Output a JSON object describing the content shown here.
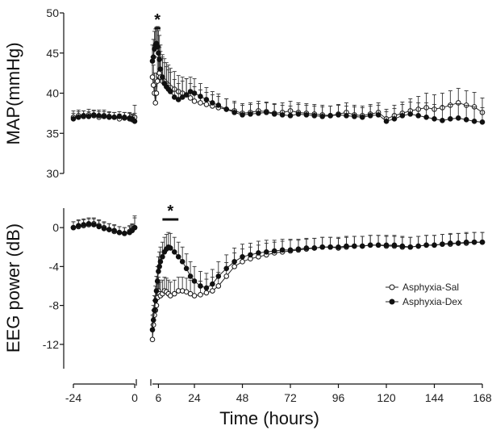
{
  "chart_data": [
    {
      "type": "line",
      "panel": "top",
      "ylabel": "MAP(mmHg)",
      "ylim": [
        30,
        50
      ],
      "yticks": [
        "30",
        "35",
        "40",
        "45",
        "50"
      ],
      "significance": "*",
      "significance_span": [
        4,
        7
      ],
      "series": [
        {
          "name": "Asphyxia-Sal",
          "marker": "open-circle",
          "x": [
            -24,
            -22,
            -20,
            -18,
            -16,
            -14,
            -12,
            -10,
            -8,
            -6,
            -4,
            -2,
            -1,
            0,
            3,
            3.5,
            4,
            4.5,
            5,
            5.5,
            6,
            6.5,
            7,
            8,
            9,
            10,
            11,
            12,
            14,
            16,
            18,
            20,
            22,
            24,
            27,
            30,
            33,
            36,
            40,
            44,
            48,
            52,
            56,
            60,
            64,
            68,
            72,
            76,
            80,
            84,
            88,
            92,
            96,
            100,
            104,
            108,
            112,
            116,
            120,
            124,
            128,
            132,
            136,
            140,
            144,
            148,
            152,
            156,
            160,
            164,
            168
          ],
          "y": [
            37,
            37.2,
            37.1,
            37.3,
            37.2,
            37,
            37.2,
            37.1,
            37,
            36.8,
            36.9,
            36.8,
            36.7,
            37,
            42,
            41,
            40,
            38.8,
            40,
            41.5,
            42.2,
            42.5,
            42,
            41.5,
            41.5,
            41.2,
            41,
            40.7,
            40.5,
            40.2,
            40,
            39.8,
            39.4,
            39,
            38.8,
            38.6,
            38.4,
            38.2,
            38,
            37.8,
            37.5,
            37.6,
            37.8,
            37.7,
            37.5,
            37.6,
            37.8,
            37.6,
            37.5,
            37.4,
            37.3,
            37.2,
            37.4,
            37.6,
            37.3,
            37.2,
            37.4,
            37.6,
            36.8,
            37.2,
            37.5,
            37.8,
            38,
            38.2,
            38,
            38.2,
            38.5,
            38.8,
            38.5,
            38.3,
            37.6
          ],
          "err": [
            0.8,
            0.7,
            0.7,
            0.7,
            0.6,
            0.7,
            0.7,
            0.6,
            0.6,
            0.6,
            0.7,
            0.7,
            0.6,
            1.5,
            2.5,
            2.5,
            2.5,
            2.0,
            2.5,
            3.0,
            3.5,
            3.2,
            3.2,
            3.0,
            2.8,
            2.6,
            2.5,
            2.4,
            2.2,
            2.0,
            2.0,
            2.0,
            1.8,
            1.8,
            1.6,
            1.5,
            1.4,
            1.4,
            1.3,
            1.2,
            1.2,
            1.2,
            1.2,
            1.2,
            1.2,
            1.2,
            1.2,
            1.2,
            1.2,
            1.2,
            1.2,
            1.2,
            1.2,
            1.2,
            1.2,
            1.2,
            1.2,
            1.2,
            1.2,
            1.3,
            1.4,
            1.5,
            1.6,
            1.8,
            1.8,
            1.8,
            1.8,
            1.8,
            1.8,
            1.8,
            1.8
          ]
        },
        {
          "name": "Asphyxia-Dex",
          "marker": "filled-circle",
          "x": [
            -24,
            -22,
            -20,
            -18,
            -16,
            -14,
            -12,
            -10,
            -8,
            -6,
            -4,
            -2,
            -1,
            0,
            3,
            3.5,
            4,
            4.5,
            5,
            5.5,
            6,
            6.5,
            7,
            8,
            9,
            10,
            11,
            12,
            14,
            16,
            18,
            20,
            22,
            24,
            27,
            30,
            33,
            36,
            40,
            44,
            48,
            52,
            56,
            60,
            64,
            68,
            72,
            76,
            80,
            84,
            88,
            92,
            96,
            100,
            104,
            108,
            112,
            116,
            120,
            124,
            128,
            132,
            136,
            140,
            144,
            148,
            152,
            156,
            160,
            164,
            168
          ],
          "y": [
            36.8,
            37,
            37.2,
            37.1,
            37.3,
            37.2,
            37.1,
            37,
            37,
            37.1,
            37,
            36.9,
            36.8,
            36.5,
            44,
            44.5,
            45.5,
            46,
            46.2,
            45.8,
            45,
            44.2,
            43,
            42,
            41.2,
            40.8,
            40.5,
            40.2,
            39.5,
            39.2,
            39.5,
            39.8,
            40.2,
            40,
            39.6,
            39.2,
            38.8,
            38.5,
            38,
            37.6,
            37.3,
            37.4,
            37.5,
            37.6,
            37.4,
            37.3,
            37.2,
            37.4,
            37.3,
            37.2,
            37.1,
            37.2,
            37.3,
            37.2,
            37.1,
            37,
            37.2,
            37.3,
            36.5,
            36.8,
            37.2,
            37.4,
            37.2,
            37,
            36.8,
            36.6,
            36.8,
            36.9,
            36.7,
            36.5,
            36.4
          ],
          "err": [
            0.7,
            0.7,
            0.6,
            0.6,
            0.6,
            0.7,
            0.6,
            0.6,
            0.6,
            0.6,
            0.6,
            0.7,
            0.6,
            1.0,
            2.0,
            2.2,
            2.2,
            2.0,
            2.0,
            2.5,
            2.8,
            3.0,
            3.0,
            2.8,
            2.6,
            2.5,
            2.4,
            2.4,
            2.2,
            2.0,
            2.0,
            2.0,
            1.8,
            1.8,
            1.6,
            1.5,
            1.4,
            1.4,
            1.3,
            1.2,
            1.2,
            1.2,
            1.2,
            1.2,
            1.2,
            1.2,
            1.2,
            1.2,
            1.2,
            1.2,
            1.2,
            1.2,
            1.2,
            1.2,
            1.2,
            1.2,
            1.2,
            1.2,
            1.2,
            1.3,
            1.4,
            1.5,
            1.6,
            1.8,
            1.8,
            1.8,
            1.8,
            1.8,
            1.8,
            1.8,
            1.8
          ]
        }
      ]
    },
    {
      "type": "line",
      "panel": "bottom",
      "ylabel": "EEG power (dB)",
      "ylim": [
        -14.5,
        2
      ],
      "yticks": [
        "-12",
        "-8",
        "-4",
        "0"
      ],
      "xlabel": "Time (hours)",
      "xticks": [
        "-24",
        "0",
        "6",
        "24",
        "48",
        "72",
        "96",
        "120",
        "144",
        "168"
      ],
      "significance": "*",
      "significance_span": [
        8,
        16
      ],
      "legend_position": "right",
      "series": [
        {
          "name": "Asphyxia-Sal",
          "marker": "open-circle",
          "x": [
            -24,
            -22,
            -20,
            -18,
            -16,
            -14,
            -12,
            -10,
            -8,
            -6,
            -4,
            -2,
            -1,
            0,
            3,
            3.5,
            4,
            4.5,
            5,
            5.5,
            6,
            6.5,
            7,
            8,
            9,
            10,
            11,
            12,
            14,
            16,
            18,
            20,
            22,
            24,
            27,
            30,
            33,
            36,
            40,
            44,
            48,
            52,
            56,
            60,
            64,
            68,
            72,
            76,
            80,
            84,
            88,
            92,
            96,
            100,
            104,
            108,
            112,
            116,
            120,
            124,
            128,
            132,
            136,
            140,
            144,
            148,
            152,
            156,
            160,
            164,
            168
          ],
          "y": [
            0,
            0.1,
            0.2,
            0.3,
            0.4,
            0.2,
            0,
            -0.2,
            -0.4,
            -0.5,
            -0.6,
            -0.4,
            -0.2,
            0,
            -11.5,
            -10,
            -9,
            -8.5,
            -8,
            -7.2,
            -6.5,
            -6.8,
            -7,
            -6.8,
            -6.5,
            -6.6,
            -6.8,
            -7,
            -6.8,
            -6.5,
            -6.5,
            -6.6,
            -6.8,
            -7,
            -6.9,
            -6.7,
            -6.5,
            -6,
            -5,
            -4,
            -3.5,
            -3.2,
            -3,
            -2.8,
            -2.6,
            -2.5,
            -2.4,
            -2.3,
            -2.2,
            -2.1,
            -2,
            -2,
            -2.1,
            -2,
            -1.9,
            -1.9,
            -1.8,
            -1.8,
            -1.9,
            -1.9,
            -2,
            -2,
            -1.9,
            -1.8,
            -1.8,
            -1.7,
            -1.7,
            -1.6,
            -1.6,
            -1.5,
            -1.5
          ],
          "err": [
            0.6,
            0.6,
            0.6,
            0.6,
            0.6,
            0.6,
            0.6,
            0.6,
            0.6,
            0.6,
            0.6,
            0.6,
            0.6,
            1.2,
            1.5,
            1.5,
            1.5,
            1.4,
            1.4,
            1.4,
            1.4,
            1.4,
            1.4,
            1.4,
            1.4,
            1.4,
            1.4,
            1.4,
            1.4,
            1.4,
            1.4,
            1.4,
            1.4,
            1.4,
            1.4,
            1.4,
            1.4,
            1.4,
            1.4,
            1.4,
            1.3,
            1.2,
            1.2,
            1.2,
            1.1,
            1.1,
            1.1,
            1.0,
            1.0,
            1.0,
            1.0,
            1.0,
            1.0,
            1.0,
            1.0,
            1.0,
            1.0,
            1.0,
            1.0,
            1.0,
            1.0,
            1.0,
            1.0,
            1.0,
            1.0,
            1.0,
            1.0,
            1.0,
            1.0,
            1.0,
            1.0
          ]
        },
        {
          "name": "Asphyxia-Dex",
          "marker": "filled-circle",
          "x": [
            -24,
            -22,
            -20,
            -18,
            -16,
            -14,
            -12,
            -10,
            -8,
            -6,
            -4,
            -2,
            -1,
            0,
            3,
            3.5,
            4,
            4.5,
            5,
            5.5,
            6,
            6.5,
            7,
            8,
            9,
            10,
            11,
            12,
            14,
            16,
            18,
            20,
            22,
            24,
            27,
            30,
            33,
            36,
            40,
            44,
            48,
            52,
            56,
            60,
            64,
            68,
            72,
            76,
            80,
            84,
            88,
            92,
            96,
            100,
            104,
            108,
            112,
            116,
            120,
            124,
            128,
            132,
            136,
            140,
            144,
            148,
            152,
            156,
            160,
            164,
            168
          ],
          "y": [
            0,
            0.2,
            0.3,
            0.4,
            0.3,
            0.1,
            -0.1,
            -0.2,
            -0.3,
            -0.5,
            -0.6,
            -0.5,
            -0.3,
            0,
            -10.5,
            -9.5,
            -8.5,
            -7.5,
            -6.5,
            -5.5,
            -4.5,
            -4,
            -3.5,
            -3,
            -2.5,
            -2.2,
            -2,
            -2.1,
            -2.5,
            -3,
            -3.5,
            -4.2,
            -5,
            -5.5,
            -6,
            -6.2,
            -5.8,
            -5,
            -4.2,
            -3.5,
            -3,
            -2.8,
            -2.6,
            -2.5,
            -2.4,
            -2.3,
            -2.3,
            -2.2,
            -2.1,
            -2.1,
            -2,
            -2,
            -2,
            -1.9,
            -1.9,
            -1.9,
            -1.8,
            -1.8,
            -1.8,
            -1.8,
            -1.9,
            -2,
            -1.9,
            -1.8,
            -1.8,
            -1.7,
            -1.6,
            -1.6,
            -1.5,
            -1.5,
            -1.5
          ],
          "err": [
            0.6,
            0.6,
            0.6,
            0.6,
            0.6,
            0.6,
            0.6,
            0.6,
            0.6,
            0.6,
            0.6,
            0.6,
            0.6,
            1.0,
            1.5,
            1.5,
            1.5,
            1.5,
            1.5,
            1.5,
            1.5,
            1.5,
            1.5,
            1.5,
            1.5,
            1.5,
            1.5,
            1.5,
            1.5,
            1.5,
            1.5,
            1.5,
            1.5,
            1.5,
            1.5,
            1.5,
            1.5,
            1.5,
            1.4,
            1.4,
            1.3,
            1.2,
            1.2,
            1.2,
            1.1,
            1.1,
            1.1,
            1.0,
            1.0,
            1.0,
            1.0,
            1.0,
            1.0,
            1.0,
            1.0,
            1.0,
            1.0,
            1.0,
            1.0,
            1.0,
            1.0,
            1.0,
            1.0,
            1.0,
            1.0,
            1.0,
            1.0,
            1.0,
            1.0,
            1.0,
            1.0
          ]
        }
      ]
    }
  ]
}
